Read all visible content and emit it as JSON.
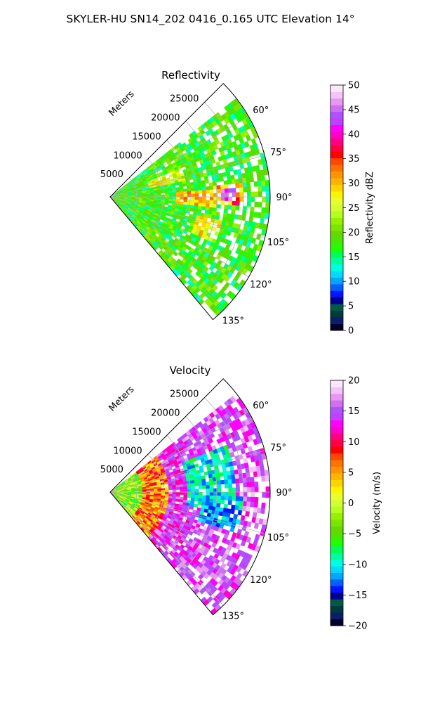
{
  "suptitle": "SKYLER-HU  SN14_202  0416_0.165 UTC Elevation 14°",
  "colors": {
    "background": "#ffffff",
    "grid": "#b0b0b0",
    "frame": "#000000"
  },
  "chart_data": [
    {
      "type": "heatmap",
      "projection": "polar-sector",
      "title": "Reflectivity",
      "radial_axis_label": "Meters",
      "radial_ticks": [
        "5000",
        "10000",
        "15000",
        "20000",
        "25000"
      ],
      "radial_tick_values": [
        5000,
        10000,
        15000,
        20000,
        25000
      ],
      "radial_range": [
        0,
        30000
      ],
      "azimuth_ticks": [
        "60°",
        "75°",
        "90°",
        "105°",
        "120°",
        "135°"
      ],
      "azimuth_tick_values": [
        60,
        75,
        90,
        105,
        120,
        135
      ],
      "azimuth_range": [
        45,
        140
      ],
      "grid": true,
      "colorbar": {
        "label": "Reflectivity dBZ",
        "range": [
          0,
          50
        ],
        "ticks": [
          "0",
          "5",
          "10",
          "15",
          "20",
          "25",
          "30",
          "35",
          "40",
          "45",
          "50"
        ],
        "colormap": [
          "#00002a",
          "#0a1e6e",
          "#003a3a",
          "#005a46",
          "#00008c",
          "#0014ff",
          "#0060ff",
          "#00a6ff",
          "#00daff",
          "#00ffe0",
          "#00ff9a",
          "#00ff55",
          "#20ff00",
          "#48e800",
          "#64d800",
          "#78e600",
          "#96f000",
          "#b4ff20",
          "#d2ff30",
          "#e8ff2c",
          "#fff400",
          "#ffd400",
          "#ffb400",
          "#ff9400",
          "#ff7200",
          "#ff4800",
          "#ff0000",
          "#ff0040",
          "#ff0080",
          "#ff00cc",
          "#ff00ff",
          "#c040ff",
          "#b050ff",
          "#d070f0",
          "#e898f4",
          "#f4c4f8",
          "#fce8fc"
        ]
      },
      "echo_regions": [
        {
          "az": [
            52,
            140
          ],
          "r": [
            500,
            29500
          ],
          "value": 18,
          "variation": 3
        },
        {
          "az": [
            84,
            94
          ],
          "r": [
            19000,
            24500
          ],
          "value": 33,
          "variation": 4
        },
        {
          "az": [
            86,
            92
          ],
          "r": [
            20500,
            23500
          ],
          "value": 42,
          "variation": 3
        },
        {
          "az": [
            86,
            95
          ],
          "r": [
            12000,
            20000
          ],
          "value": 30,
          "variation": 3
        },
        {
          "az": [
            101,
            114
          ],
          "r": [
            16000,
            21000
          ],
          "value": 27,
          "variation": 3
        },
        {
          "az": [
            67,
            78
          ],
          "r": [
            7000,
            14000
          ],
          "value": 26,
          "variation": 3
        }
      ]
    },
    {
      "type": "heatmap",
      "projection": "polar-sector",
      "title": "Velocity",
      "radial_axis_label": "Meters",
      "radial_ticks": [
        "5000",
        "10000",
        "15000",
        "20000",
        "25000"
      ],
      "radial_tick_values": [
        5000,
        10000,
        15000,
        20000,
        25000
      ],
      "radial_range": [
        0,
        30000
      ],
      "azimuth_ticks": [
        "60°",
        "75°",
        "90°",
        "105°",
        "120°",
        "135°"
      ],
      "azimuth_tick_values": [
        60,
        75,
        90,
        105,
        120,
        135
      ],
      "azimuth_range": [
        45,
        140
      ],
      "grid": true,
      "colorbar": {
        "label": "Velocity (m/s)",
        "range": [
          -20,
          20
        ],
        "ticks": [
          "−20",
          "−15",
          "−10",
          "−5",
          "0",
          "5",
          "10",
          "15",
          "20"
        ],
        "colormap": [
          "#00002a",
          "#0a1e6e",
          "#003a3a",
          "#005a46",
          "#00008c",
          "#0014ff",
          "#0060ff",
          "#00a6ff",
          "#00daff",
          "#00ffe0",
          "#00ff9a",
          "#00ff55",
          "#20ff00",
          "#48e800",
          "#64d800",
          "#78e600",
          "#96f000",
          "#b4ff20",
          "#d2ff30",
          "#e8ff2c",
          "#fff400",
          "#ffd400",
          "#ffb400",
          "#ff9400",
          "#ff7200",
          "#ff4800",
          "#ff0000",
          "#ff0040",
          "#ff0080",
          "#ff00cc",
          "#ff00ff",
          "#c040ff",
          "#b050ff",
          "#d070f0",
          "#e898f4",
          "#f4c4f8",
          "#fce8fc"
        ]
      },
      "echo_regions": [
        {
          "az": [
            52,
            140
          ],
          "r": [
            500,
            6000
          ],
          "value": -3,
          "variation": 3
        },
        {
          "az": [
            52,
            140
          ],
          "r": [
            6000,
            11000
          ],
          "value": 6,
          "variation": 3
        },
        {
          "az": [
            52,
            140
          ],
          "r": [
            11000,
            16000
          ],
          "value": 14,
          "variation": 2
        },
        {
          "az": [
            52,
            140
          ],
          "r": [
            16000,
            29500
          ],
          "value": 15,
          "variation": 2
        },
        {
          "az": [
            68,
            100
          ],
          "r": [
            14000,
            23500
          ],
          "value": -10,
          "variation": 2
        },
        {
          "az": [
            92,
            108
          ],
          "r": [
            17000,
            24500
          ],
          "value": -11,
          "variation": 2
        }
      ]
    }
  ]
}
